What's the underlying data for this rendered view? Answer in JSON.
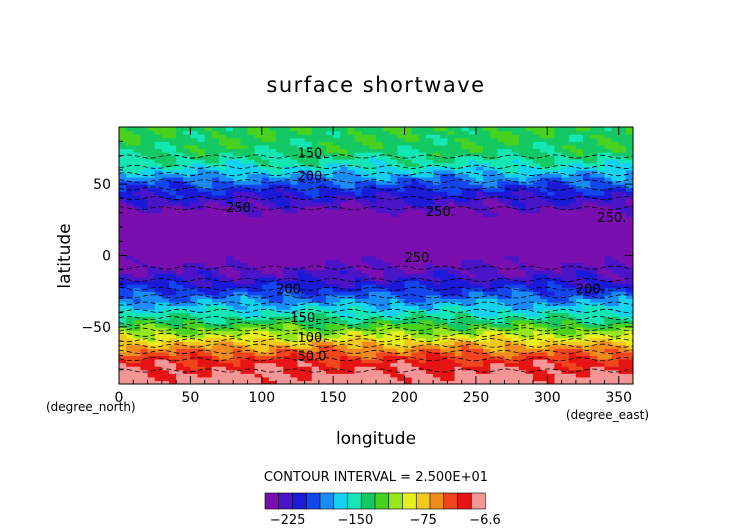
{
  "chart_data": {
    "type": "heatmap",
    "title": "surface shortwave",
    "xlabel": "longitude",
    "ylabel": "latitude",
    "x_units": "(degree_east)",
    "y_units": "(degree_north)",
    "xlim": [
      0,
      360
    ],
    "ylim": [
      -90,
      90
    ],
    "x_ticks": [
      0,
      50,
      100,
      150,
      200,
      250,
      300,
      350
    ],
    "y_ticks": [
      -50,
      0,
      50
    ],
    "contour_interval_text": "CONTOUR INTERVAL = 2.500E+01",
    "colorbar_ticks": [
      "−225",
      "−150",
      "−75",
      "−6.6"
    ],
    "colorbar_min": -250,
    "colorbar_max": -6.6,
    "colorbar_colors": [
      "#7a0fb0",
      "#4a14c8",
      "#1a1ad8",
      "#1446f0",
      "#1a8cf8",
      "#14d2f0",
      "#14e6b4",
      "#14c864",
      "#46d21e",
      "#96e61e",
      "#e6f01e",
      "#f0c81e",
      "#f08c1e",
      "#f0461e",
      "#e61414",
      "#f59696"
    ],
    "lat_band_values": [
      {
        "lat": -90,
        "value": -8
      },
      {
        "lat": -75,
        "value": -30
      },
      {
        "lat": -65,
        "value": -60
      },
      {
        "lat": -55,
        "value": -100
      },
      {
        "lat": -45,
        "value": -140
      },
      {
        "lat": -35,
        "value": -170
      },
      {
        "lat": -25,
        "value": -200
      },
      {
        "lat": -15,
        "value": -225
      },
      {
        "lat": -5,
        "value": -240
      },
      {
        "lat": 5,
        "value": -255
      },
      {
        "lat": 15,
        "value": -262
      },
      {
        "lat": 25,
        "value": -255
      },
      {
        "lat": 35,
        "value": -230
      },
      {
        "lat": 45,
        "value": -210
      },
      {
        "lat": 55,
        "value": -180
      },
      {
        "lat": 65,
        "value": -150
      },
      {
        "lat": 75,
        "value": -135
      },
      {
        "lat": 90,
        "value": -130
      }
    ],
    "contour_labels": [
      {
        "text": "150.",
        "x": 125,
        "y": 72
      },
      {
        "text": "200.",
        "x": 125,
        "y": 56
      },
      {
        "text": "250.",
        "x": 75,
        "y": 34
      },
      {
        "text": "250.",
        "x": 215,
        "y": 31
      },
      {
        "text": "250.",
        "x": 335,
        "y": 27
      },
      {
        "text": "250.",
        "x": 200,
        "y": -1
      },
      {
        "text": "200.",
        "x": 110,
        "y": -23
      },
      {
        "text": "200.",
        "x": 320,
        "y": -23
      },
      {
        "text": "150.",
        "x": 120,
        "y": -43
      },
      {
        "text": "100.",
        "x": 125,
        "y": -57
      },
      {
        "text": "50.0",
        "x": 125,
        "y": -70
      }
    ]
  }
}
